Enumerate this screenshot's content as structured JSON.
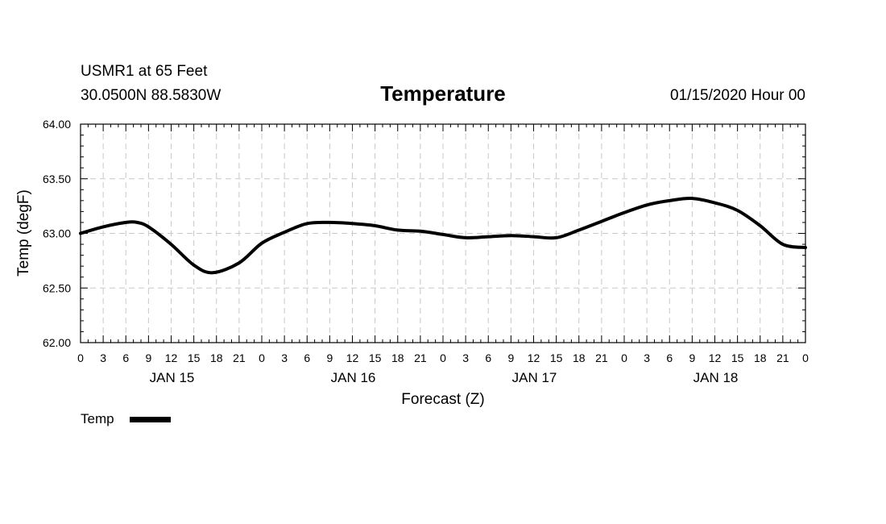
{
  "header": {
    "station": "USMR1 at 65 Feet",
    "coords": "30.0500N 88.5830W",
    "title": "Temperature",
    "datetime": "01/15/2020 Hour 00"
  },
  "chart_data": {
    "type": "line",
    "title": "Temperature",
    "xlabel": "Forecast (Z)",
    "ylabel": "Temp (degF)",
    "xlim": [
      0,
      96
    ],
    "ylim": [
      62.0,
      64.0
    ],
    "x_ticks": [
      0,
      3,
      6,
      9,
      12,
      15,
      18,
      21,
      24,
      27,
      30,
      33,
      36,
      39,
      42,
      45,
      48,
      51,
      54,
      57,
      60,
      63,
      66,
      69,
      72,
      75,
      78,
      81,
      84,
      87,
      90,
      93,
      96
    ],
    "x_tick_labels": [
      "0",
      "3",
      "6",
      "9",
      "12",
      "15",
      "18",
      "21",
      "0",
      "3",
      "6",
      "9",
      "12",
      "15",
      "18",
      "21",
      "0",
      "3",
      "6",
      "9",
      "12",
      "15",
      "18",
      "21",
      "0",
      "3",
      "6",
      "9",
      "12",
      "15",
      "18",
      "21",
      "0"
    ],
    "y_ticks": [
      62.0,
      62.5,
      63.0,
      63.5,
      64.0
    ],
    "y_tick_labels": [
      "62.00",
      "62.50",
      "63.00",
      "63.50",
      "64.00"
    ],
    "date_labels": [
      {
        "x": 12,
        "label": "JAN 15"
      },
      {
        "x": 36,
        "label": "JAN 16"
      },
      {
        "x": 60,
        "label": "JAN 17"
      },
      {
        "x": 84,
        "label": "JAN 18"
      }
    ],
    "grid": true,
    "legend_position": "bottom-left",
    "series": [
      {
        "name": "Temp",
        "color": "#000000",
        "x": [
          0,
          3,
          6,
          7.5,
          9,
          12,
          15,
          17.5,
          21,
          24,
          27,
          30,
          33,
          36,
          39,
          42,
          45,
          48,
          51,
          54,
          57,
          60,
          63,
          66,
          69,
          72,
          75,
          78,
          81,
          84,
          87,
          90,
          93,
          96
        ],
        "y": [
          63.0,
          63.06,
          63.1,
          63.1,
          63.06,
          62.9,
          62.71,
          62.64,
          62.73,
          62.91,
          63.01,
          63.09,
          63.1,
          63.09,
          63.07,
          63.03,
          63.02,
          62.99,
          62.96,
          62.97,
          62.98,
          62.97,
          62.96,
          63.03,
          63.11,
          63.19,
          63.26,
          63.3,
          63.32,
          63.28,
          63.21,
          63.07,
          62.9,
          62.87
        ]
      }
    ]
  }
}
